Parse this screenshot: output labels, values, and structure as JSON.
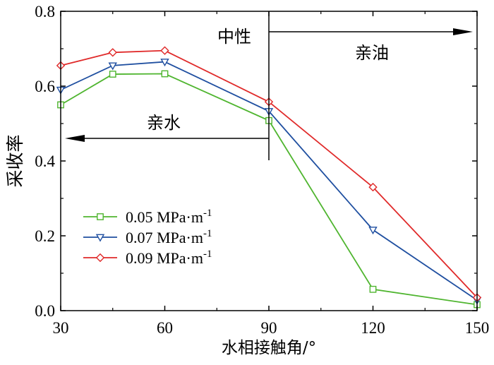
{
  "chart_data": {
    "type": "line",
    "xlabel": "水相接触角/°",
    "ylabel": "采收率",
    "xlim": [
      30,
      150
    ],
    "ylim": [
      0.0,
      0.8
    ],
    "x_ticks": [
      "30",
      "60",
      "90",
      "120",
      "150"
    ],
    "y_ticks": [
      "0.0",
      "0.2",
      "0.4",
      "0.6",
      "0.8"
    ],
    "x_tick_values": [
      30,
      60,
      90,
      120,
      150
    ],
    "y_tick_values": [
      0.0,
      0.2,
      0.4,
      0.6,
      0.8
    ],
    "legend_position": "bottom-left",
    "series": [
      {
        "name": "0.05 MPa·m",
        "name_sup": "-1",
        "color": "#4fb52f",
        "marker": "square",
        "x": [
          30,
          45,
          60,
          90,
          120,
          150
        ],
        "y": [
          0.55,
          0.632,
          0.633,
          0.508,
          0.057,
          0.016
        ]
      },
      {
        "name": "0.07 MPa·m",
        "name_sup": "-1",
        "color": "#1f4fa0",
        "marker": "triangle-down",
        "x": [
          30,
          45,
          60,
          90,
          120,
          150
        ],
        "y": [
          0.59,
          0.655,
          0.665,
          0.533,
          0.216,
          0.028
        ]
      },
      {
        "name": "0.09 MPa·m",
        "name_sup": "-1",
        "color": "#e02a2a",
        "marker": "diamond",
        "x": [
          30,
          45,
          60,
          90,
          120,
          150
        ],
        "y": [
          0.655,
          0.69,
          0.695,
          0.558,
          0.33,
          0.035
        ]
      }
    ],
    "annotations": {
      "neutral_label": "中性",
      "oil_wet_label": "亲油",
      "water_wet_label": "亲水",
      "divider_x": 90
    }
  }
}
